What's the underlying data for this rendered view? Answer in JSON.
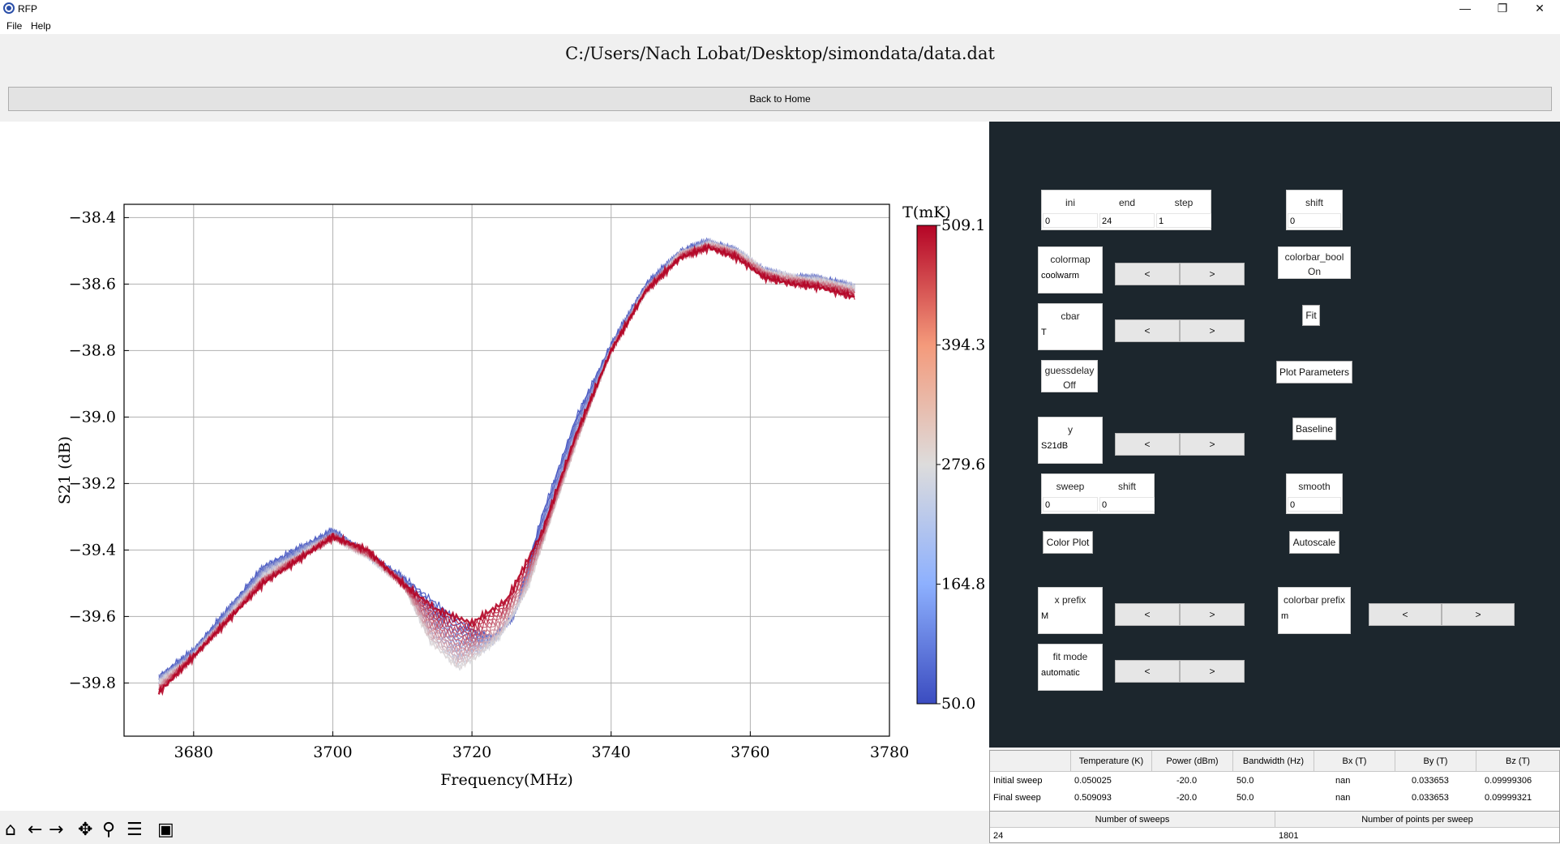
{
  "window": {
    "title": "RFP",
    "minimize": "—",
    "restore": "❐",
    "close": "✕"
  },
  "menu": [
    {
      "label": "File"
    },
    {
      "label": "Help"
    }
  ],
  "header": {
    "path": "C:/Users/Nach Lobat/Desktop/simondata/data.dat",
    "back_label": "Back to Home"
  },
  "chart_data": {
    "type": "line",
    "title": "",
    "xlabel": "Frequency(MHz)",
    "ylabel": "S21 (dB)",
    "xlim": [
      3670,
      3780
    ],
    "ylim": [
      -39.96,
      -38.36
    ],
    "xticks": [
      3680,
      3700,
      3720,
      3740,
      3760,
      3780
    ],
    "yticks": [
      -38.4,
      -38.6,
      -38.8,
      -39.0,
      -39.2,
      -39.4,
      -39.6,
      -39.8
    ],
    "grid": true,
    "colorbar": {
      "label": "T(mK)",
      "colormap": "coolwarm",
      "ticks": [
        509.1,
        394.3,
        279.6,
        164.8,
        50.0
      ],
      "range": [
        50.0,
        509.1
      ]
    },
    "sweep_count": 24,
    "series": [
      {
        "temperature_mK": 50,
        "color": "#3b4cc0",
        "x": [
          3675,
          3680,
          3690,
          3700,
          3710,
          3716,
          3720,
          3723,
          3726,
          3730,
          3735,
          3740,
          3745,
          3750,
          3754,
          3758,
          3762,
          3766,
          3770,
          3775
        ],
        "y": [
          -39.78,
          -39.7,
          -39.45,
          -39.34,
          -39.48,
          -39.58,
          -39.64,
          -39.66,
          -39.6,
          -39.3,
          -39.0,
          -38.78,
          -38.6,
          -38.5,
          -38.47,
          -38.5,
          -38.56,
          -38.58,
          -38.58,
          -38.61
        ]
      },
      {
        "temperature_mK": 280,
        "color": "#dddcdc",
        "x": [
          3675,
          3680,
          3690,
          3700,
          3705,
          3710,
          3714,
          3718,
          3721,
          3724,
          3728,
          3735,
          3740,
          3745,
          3750,
          3754,
          3758,
          3762,
          3766,
          3770,
          3775
        ],
        "y": [
          -39.8,
          -39.72,
          -39.48,
          -39.36,
          -39.42,
          -39.5,
          -39.68,
          -39.76,
          -39.72,
          -39.66,
          -39.52,
          -39.08,
          -38.8,
          -38.62,
          -38.51,
          -38.48,
          -38.5,
          -38.56,
          -38.58,
          -38.59,
          -38.61
        ]
      },
      {
        "temperature_mK": 509.1,
        "color": "#b40426",
        "x": [
          3675,
          3680,
          3690,
          3700,
          3705,
          3710,
          3715,
          3720,
          3725,
          3730,
          3735,
          3740,
          3745,
          3750,
          3754,
          3758,
          3762,
          3766,
          3770,
          3775
        ],
        "y": [
          -39.83,
          -39.72,
          -39.5,
          -39.36,
          -39.4,
          -39.5,
          -39.58,
          -39.62,
          -39.55,
          -39.35,
          -39.05,
          -38.8,
          -38.62,
          -38.52,
          -38.49,
          -38.52,
          -38.58,
          -38.6,
          -38.61,
          -38.64
        ]
      }
    ]
  },
  "panel": {
    "range": {
      "ini_label": "ini",
      "end_label": "end",
      "step_label": "step",
      "ini": "0",
      "end": "24",
      "step": "1"
    },
    "shift": {
      "label": "shift",
      "value": "0"
    },
    "colormap": {
      "label": "colormap",
      "value": "coolwarm"
    },
    "colorbar_bool": {
      "label": "colorbar_bool",
      "value": "On"
    },
    "cbar": {
      "label": "cbar",
      "value": "T"
    },
    "fit_label": "Fit",
    "guessdelay": {
      "label": "guessdelay",
      "value": "Off"
    },
    "plot_parameters_label": "Plot Parameters",
    "y": {
      "label": "y",
      "value": "S21dB"
    },
    "baseline_label": "Baseline",
    "sweep": {
      "label": "sweep",
      "value": "0",
      "shift_label": "shift",
      "shift_value": "0"
    },
    "smooth": {
      "label": "smooth",
      "value": "0"
    },
    "color_plot_label": "Color Plot",
    "autoscale_label": "Autoscale",
    "x_prefix": {
      "label": "x prefix",
      "value": "M"
    },
    "colorbar_prefix": {
      "label": "colorbar prefix",
      "value": "m"
    },
    "fit_mode": {
      "label": "fit mode",
      "value": "automatic"
    },
    "prev": "<",
    "next": ">"
  },
  "table": {
    "headers": [
      "",
      "Temperature (K)",
      "Power (dBm)",
      "Bandwidth (Hz)",
      "Bx (T)",
      "By (T)",
      "Bz (T)"
    ],
    "rows": [
      [
        "Initial sweep",
        "0.050025",
        "-20.0",
        "50.0",
        "nan",
        "0.033653",
        "0.09999306"
      ],
      [
        "Final sweep",
        "0.509093",
        "-20.0",
        "50.0",
        "nan",
        "0.033653",
        "0.09999321"
      ]
    ]
  },
  "sweep_table": {
    "headers": [
      "Number of sweeps",
      "Number of points per sweep"
    ],
    "values": [
      "24",
      "1801"
    ]
  },
  "toolbar": [
    {
      "name": "home-icon",
      "glyph": "⌂"
    },
    {
      "name": "back-arrow-icon",
      "glyph": "←"
    },
    {
      "name": "forward-arrow-icon",
      "glyph": "→"
    },
    {
      "name": "pan-icon",
      "glyph": "✥"
    },
    {
      "name": "zoom-icon",
      "glyph": "⚲"
    },
    {
      "name": "configure-subplots-icon",
      "glyph": "☰"
    },
    {
      "name": "save-icon",
      "glyph": "▣"
    }
  ]
}
